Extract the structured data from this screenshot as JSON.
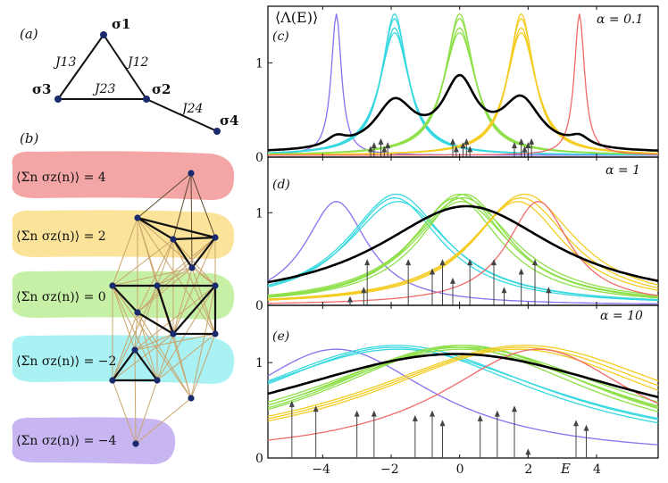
{
  "panel_a": {
    "label": "(a)",
    "nodes": [
      "σ1",
      "σ2",
      "σ3",
      "σ4"
    ],
    "couplings": [
      "J13",
      "J12",
      "J23",
      "J24"
    ]
  },
  "panel_b": {
    "label": "(b)",
    "sectors": [
      {
        "text": "⟨Σn σz(n)⟩ = 4",
        "color": "#f4a5a5"
      },
      {
        "text": "⟨Σn σz(n)⟩ = 2",
        "color": "#fbe39a"
      },
      {
        "text": "⟨Σn σz(n)⟩ = 0",
        "color": "#c6f0a6"
      },
      {
        "text": "⟨Σn σz(n)⟩ = −2",
        "color": "#a9f1f3"
      },
      {
        "text": "⟨Σn σz(n)⟩ = −4",
        "color": "#c7b6f2"
      }
    ]
  },
  "chart_data": [
    {
      "type": "line",
      "panel": "(c)",
      "title": "α = 0.1",
      "ylabel": "⟨Λ(E)⟩",
      "xlim": [
        -5.6,
        5.8
      ],
      "ylim": [
        0,
        1.6
      ],
      "yticks": [
        0,
        1
      ],
      "series_summary": {
        "colored_peaks_at": [
          -3.6,
          -1.9,
          0.0,
          1.8,
          3.5
        ],
        "average_black_peaks": [
          {
            "x": -3.6,
            "y": 0.13
          },
          {
            "x": -1.9,
            "y": 0.58
          },
          {
            "x": 0.0,
            "y": 0.82
          },
          {
            "x": 1.8,
            "y": 0.6
          },
          {
            "x": 3.5,
            "y": 0.13
          }
        ]
      },
      "arrow_positions": [
        -2.6,
        -2.5,
        -2.3,
        -2.2,
        -2.1,
        -0.2,
        -0.1,
        0.1,
        0.2,
        0.3,
        1.6,
        1.8,
        1.9,
        2.0,
        2.1
      ]
    },
    {
      "type": "line",
      "panel": "(d)",
      "title": "α = 1",
      "xlim": [
        -5.6,
        5.8
      ],
      "ylim": [
        0,
        1.6
      ],
      "yticks": [
        0,
        1
      ],
      "average_peak": {
        "x": 0.2,
        "y": 1.07
      }
    },
    {
      "type": "line",
      "panel": "(e)",
      "title": "α = 10",
      "xlabel": "E",
      "xlim": [
        -5.6,
        5.8
      ],
      "ylim": [
        0,
        1.6
      ],
      "xticks": [
        -4,
        -2,
        0,
        2,
        4
      ],
      "yticks": [
        0,
        1
      ],
      "average_peak": {
        "x": -0.1,
        "y": 1.09
      }
    }
  ]
}
